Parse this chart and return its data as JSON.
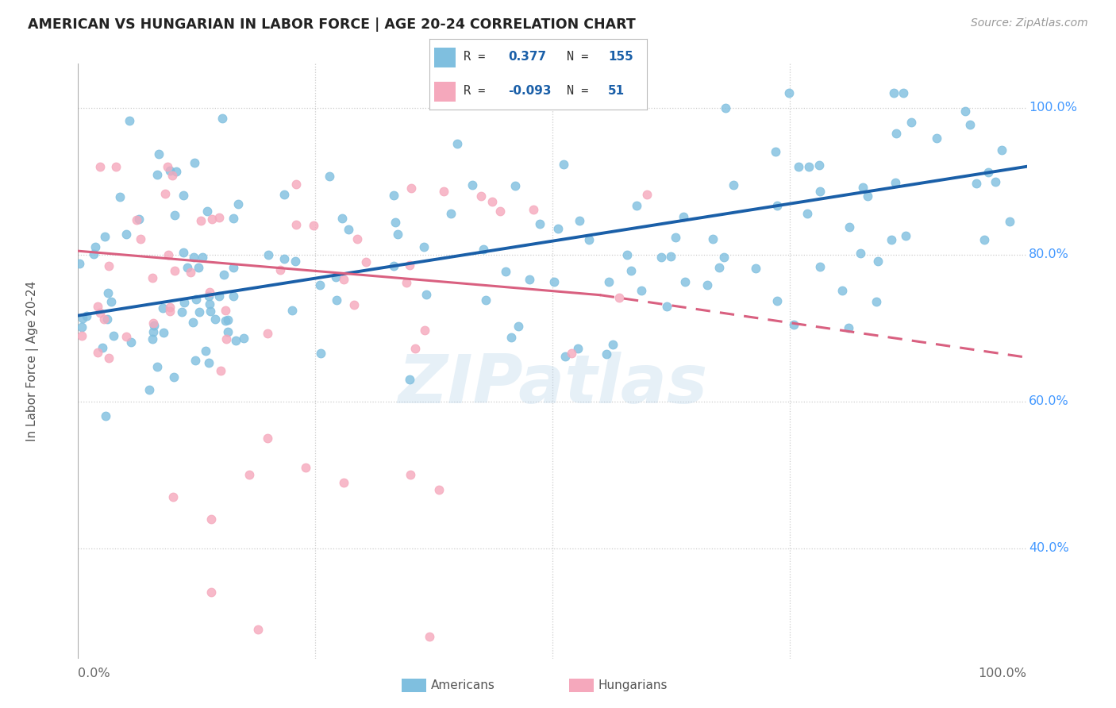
{
  "title": "AMERICAN VS HUNGARIAN IN LABOR FORCE | AGE 20-24 CORRELATION CHART",
  "source": "Source: ZipAtlas.com",
  "ylabel": "In Labor Force | Age 20-24",
  "xlim": [
    0.0,
    1.0
  ],
  "ylim": [
    0.25,
    1.06
  ],
  "blue_color": "#7fbfdf",
  "blue_line_color": "#1a5fa8",
  "pink_color": "#f5a8bc",
  "pink_line_color": "#d96080",
  "blue_r": "0.377",
  "blue_n": "155",
  "pink_r": "-0.093",
  "pink_n": "51",
  "watermark": "ZIPatlas",
  "grid_color": "#cccccc",
  "right_label_color": "#4499ff",
  "seed": 12345
}
